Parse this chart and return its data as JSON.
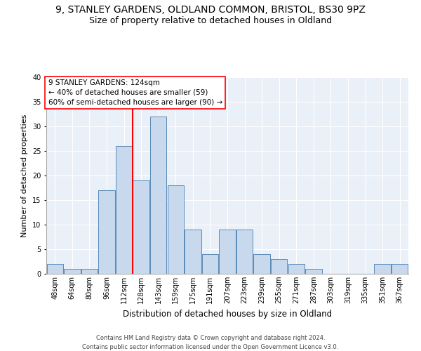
{
  "title_line1": "9, STANLEY GARDENS, OLDLAND COMMON, BRISTOL, BS30 9PZ",
  "title_line2": "Size of property relative to detached houses in Oldland",
  "xlabel": "Distribution of detached houses by size in Oldland",
  "ylabel": "Number of detached properties",
  "footer_line1": "Contains HM Land Registry data © Crown copyright and database right 2024.",
  "footer_line2": "Contains public sector information licensed under the Open Government Licence v3.0.",
  "bin_labels": [
    "48sqm",
    "64sqm",
    "80sqm",
    "96sqm",
    "112sqm",
    "128sqm",
    "143sqm",
    "159sqm",
    "175sqm",
    "191sqm",
    "207sqm",
    "223sqm",
    "239sqm",
    "255sqm",
    "271sqm",
    "287sqm",
    "303sqm",
    "319sqm",
    "335sqm",
    "351sqm",
    "367sqm"
  ],
  "bar_values": [
    2,
    1,
    1,
    17,
    26,
    19,
    32,
    18,
    9,
    4,
    9,
    9,
    4,
    3,
    2,
    1,
    0,
    0,
    0,
    2,
    2
  ],
  "bar_color": "#c9d9ed",
  "bar_edge_color": "#5a8ab8",
  "property_line_color": "red",
  "annotation_box_text": "9 STANLEY GARDENS: 124sqm\n← 40% of detached houses are smaller (59)\n60% of semi-detached houses are larger (90) →",
  "ylim": [
    0,
    40
  ],
  "yticks": [
    0,
    5,
    10,
    15,
    20,
    25,
    30,
    35,
    40
  ],
  "background_color": "#eaf0f8",
  "grid_color": "white",
  "title_fontsize": 10,
  "subtitle_fontsize": 9,
  "annotation_fontsize": 7.5,
  "ylabel_fontsize": 8,
  "xlabel_fontsize": 8.5,
  "tick_fontsize": 7,
  "footer_fontsize": 6
}
